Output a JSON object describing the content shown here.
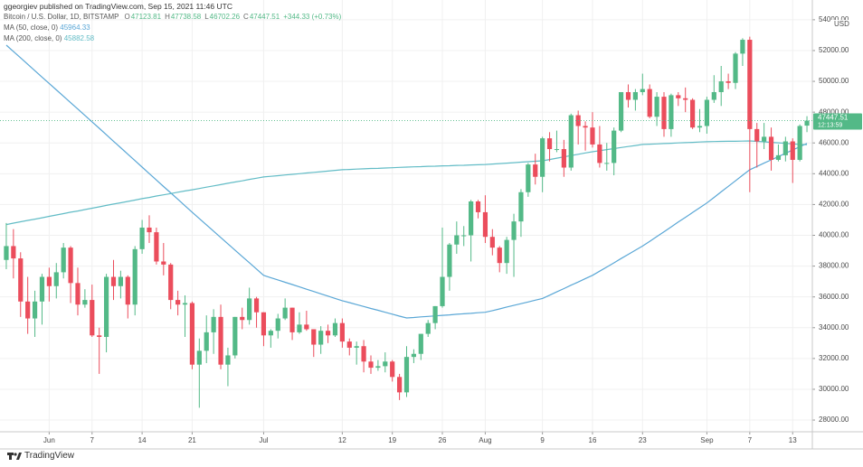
{
  "chart_data": {
    "type": "candlestick",
    "published": "ggeorgiev published on TradingView.com, Sep 15, 2021 11:46 UTC",
    "symbol": "Bitcoin / U.S. Dollar, 1D, BITSTAMP",
    "ohlc_labels": [
      "O",
      "H",
      "L",
      "C"
    ],
    "change": "+344.33 (+0.73%)",
    "currency": "USD",
    "countdown": "12:13:59",
    "brand": "TradingView",
    "up_color": "#53b987",
    "down_color": "#eb4d5c",
    "grid": true,
    "categories": [
      null,
      null,
      null,
      null,
      null,
      null,
      "Jun",
      null,
      null,
      null,
      null,
      null,
      "7",
      null,
      null,
      null,
      null,
      null,
      null,
      "14",
      null,
      null,
      null,
      null,
      null,
      null,
      "21",
      null,
      null,
      null,
      null,
      null,
      null,
      null,
      null,
      null,
      "Jul",
      null,
      null,
      null,
      null,
      null,
      null,
      null,
      null,
      null,
      null,
      "12",
      null,
      null,
      null,
      null,
      null,
      null,
      "19",
      null,
      null,
      null,
      null,
      null,
      null,
      "26",
      null,
      null,
      null,
      null,
      null,
      "Aug",
      null,
      null,
      null,
      null,
      null,
      null,
      null,
      "9",
      null,
      null,
      null,
      null,
      null,
      null,
      "16",
      null,
      null,
      null,
      null,
      null,
      null,
      "23",
      null,
      null,
      null,
      null,
      null,
      null,
      null,
      null,
      "Sep",
      null,
      null,
      null,
      null,
      null,
      "7",
      null,
      null,
      null,
      null,
      null,
      "13",
      null,
      null
    ],
    "open": [
      38400,
      39300,
      38500,
      35700,
      34600,
      35700,
      37300,
      36700,
      37600,
      39200,
      36900,
      35500,
      35800,
      33500,
      33400,
      37300,
      36700,
      37300,
      35500,
      39100,
      40500,
      40200,
      38300,
      38100,
      35800,
      35500,
      35600,
      31600,
      32500,
      33700,
      34700,
      31600,
      32200,
      34700,
      34500,
      35900,
      35000,
      33500,
      33800,
      34600,
      35300,
      33700,
      34200,
      33900,
      32900,
      33800,
      33500,
      34300,
      33100,
      32700,
      32800,
      31800,
      31400,
      31500,
      31800,
      30800,
      29800,
      32100,
      32300,
      33600,
      34300,
      35400,
      37300,
      39400,
      40000,
      40000,
      42200,
      41500,
      39900,
      39200,
      38200,
      39700,
      40900,
      42800,
      44600,
      43800,
      46300,
      45600,
      45600,
      44400,
      47800,
      47100,
      47000,
      45900,
      44700,
      44700,
      46800,
      49300,
      48800,
      49300,
      49500,
      47700,
      49000,
      46900,
      49100,
      48900,
      48800,
      47000,
      47100,
      48800,
      49300,
      50000,
      49900,
      51800,
      52700,
      46900,
      46100,
      46400,
      44900,
      45200,
      46100,
      44900,
      47123.81
    ],
    "high": [
      40800,
      40400,
      38900,
      37300,
      36400,
      37500,
      37900,
      38200,
      39500,
      39300,
      37900,
      36500,
      36800,
      34000,
      37500,
      38400,
      37700,
      37400,
      39300,
      41000,
      41300,
      40500,
      39500,
      38200,
      36400,
      36100,
      35700,
      33300,
      34800,
      35200,
      35500,
      32700,
      34700,
      35300,
      36600,
      36000,
      35000,
      33900,
      34900,
      35900,
      35300,
      35000,
      35100,
      33900,
      34100,
      34200,
      34600,
      34600,
      33300,
      33100,
      33200,
      32200,
      31900,
      32400,
      31900,
      31000,
      32800,
      32600,
      33600,
      34500,
      35400,
      40500,
      39500,
      40900,
      40600,
      42300,
      42300,
      42600,
      40400,
      39300,
      39900,
      41400,
      43000,
      44700,
      45300,
      46400,
      46700,
      46800,
      46200,
      47900,
      48100,
      47400,
      48000,
      47100,
      46000,
      47000,
      49300,
      49800,
      49500,
      50500,
      49800,
      49300,
      49300,
      49200,
      49300,
      49600,
      48900,
      48200,
      49000,
      50400,
      51000,
      50500,
      51900,
      52800,
      52900,
      47300,
      47300,
      47000,
      45900,
      46400,
      46300,
      47200,
      47738.58
    ],
    "low": [
      37800,
      37200,
      34700,
      33600,
      33400,
      34200,
      35700,
      35900,
      37200,
      35600,
      34800,
      35300,
      33400,
      31000,
      32400,
      35800,
      35900,
      34600,
      34800,
      38800,
      39500,
      38100,
      37400,
      35200,
      34800,
      33400,
      31300,
      28800,
      31700,
      32300,
      31300,
      30200,
      32000,
      33900,
      34200,
      34000,
      32800,
      32700,
      33300,
      34500,
      33200,
      33600,
      33800,
      32100,
      32300,
      33000,
      33400,
      32700,
      32200,
      31600,
      31100,
      31000,
      31200,
      31100,
      30500,
      29300,
      29500,
      31700,
      31900,
      33400,
      33900,
      35300,
      36400,
      38800,
      39300,
      38300,
      41100,
      39500,
      38700,
      37600,
      37500,
      37300,
      39900,
      42500,
      43300,
      42800,
      44800,
      45400,
      43800,
      44200,
      45900,
      45500,
      45700,
      44400,
      44200,
      43900,
      46700,
      48300,
      48100,
      49100,
      47600,
      47100,
      46400,
      46400,
      48400,
      48000,
      46900,
      46700,
      46600,
      48600,
      48400,
      49500,
      49500,
      51000,
      42800,
      44400,
      45600,
      44200,
      44800,
      44800,
      43400,
      44800,
      46702.26
    ],
    "close": [
      39300,
      38500,
      35700,
      34600,
      35700,
      37300,
      36700,
      37600,
      39200,
      36900,
      35500,
      35800,
      33500,
      33400,
      37300,
      36700,
      37300,
      35500,
      39100,
      40500,
      40200,
      38300,
      38100,
      35800,
      35500,
      35600,
      31600,
      32500,
      33700,
      34700,
      31600,
      32200,
      34700,
      34500,
      35900,
      35000,
      33500,
      33800,
      34600,
      35300,
      33700,
      34200,
      33900,
      32900,
      33800,
      33500,
      34300,
      33100,
      32700,
      32800,
      31800,
      31400,
      31500,
      31800,
      30800,
      29800,
      32100,
      32300,
      33600,
      34300,
      35400,
      37300,
      39400,
      40000,
      40000,
      42200,
      41500,
      39900,
      39200,
      38200,
      39700,
      40900,
      42800,
      44600,
      43800,
      46300,
      45600,
      45600,
      44400,
      47800,
      47100,
      47000,
      45900,
      44700,
      44700,
      46800,
      49300,
      48800,
      49300,
      49500,
      47700,
      49000,
      46900,
      49100,
      48900,
      48800,
      47000,
      47100,
      48800,
      49300,
      50000,
      49900,
      51800,
      52700,
      46900,
      46100,
      46400,
      44900,
      45200,
      46100,
      44900,
      47100,
      47447.51
    ],
    "series": [
      {
        "name": "MA (50, close, 0)",
        "color": "#5aa7d6",
        "values": [
          52350,
          51935,
          51520,
          51105,
          50690,
          50275,
          49860,
          49445,
          49030,
          48615,
          48200,
          47785,
          47370,
          46950,
          46530,
          46110,
          45690,
          45270,
          44850,
          44430,
          44010,
          43590,
          43170,
          42760,
          42340,
          41920,
          41500,
          41090,
          40680,
          40270,
          39860,
          39450,
          39040,
          38630,
          38220,
          37810,
          37400,
          37250,
          37100,
          36950,
          36800,
          36650,
          36500,
          36350,
          36200,
          36050,
          35900,
          35750,
          35630,
          35500,
          35380,
          35250,
          35130,
          35000,
          34880,
          34750,
          34630,
          34660,
          34700,
          34730,
          34770,
          34800,
          34830,
          34870,
          34900,
          34930,
          34970,
          35000,
          35110,
          35220,
          35340,
          35450,
          35560,
          35670,
          35790,
          35900,
          36110,
          36330,
          36540,
          36760,
          36970,
          37190,
          37400,
          37670,
          37940,
          38210,
          38490,
          38760,
          39030,
          39300,
          39610,
          39920,
          40230,
          40540,
          40860,
          41170,
          41480,
          41790,
          42100,
          42460,
          42820,
          43180,
          43540,
          43900,
          44260,
          44470,
          44690,
          44900,
          45110,
          45330,
          45540,
          45750,
          45964.33
        ]
      },
      {
        "name": "MA (200, close, 0)",
        "color": "#62bcc6",
        "values": [
          40700,
          40790,
          40880,
          40970,
          41050,
          41140,
          41230,
          41320,
          41410,
          41500,
          41580,
          41670,
          41760,
          41850,
          41940,
          42030,
          42110,
          42200,
          42290,
          42380,
          42460,
          42550,
          42630,
          42710,
          42800,
          42880,
          42960,
          43040,
          43130,
          43210,
          43290,
          43380,
          43460,
          43540,
          43630,
          43710,
          43790,
          43830,
          43870,
          43920,
          43960,
          44000,
          44050,
          44090,
          44130,
          44170,
          44220,
          44260,
          44280,
          44300,
          44320,
          44340,
          44350,
          44370,
          44390,
          44410,
          44430,
          44450,
          44460,
          44480,
          44490,
          44510,
          44520,
          44540,
          44550,
          44570,
          44580,
          44600,
          44630,
          44660,
          44690,
          44720,
          44750,
          44780,
          44810,
          44840,
          44920,
          45010,
          45090,
          45180,
          45260,
          45350,
          45430,
          45500,
          45570,
          45630,
          45700,
          45770,
          45830,
          45900,
          45920,
          45940,
          45960,
          45980,
          46000,
          46020,
          46040,
          46060,
          46080,
          46090,
          46100,
          46110,
          46110,
          46120,
          46130,
          46100,
          46070,
          46040,
          46010,
          45970,
          45940,
          45910,
          45882.58
        ]
      }
    ],
    "ylim": [
      27240,
      54110
    ],
    "yticks": [
      {
        "value": 28000,
        "label": "28000.00"
      },
      {
        "value": 30000,
        "label": "30000.00"
      },
      {
        "value": 32000,
        "label": "32000.00"
      },
      {
        "value": 34000,
        "label": "34000.00"
      },
      {
        "value": 36000,
        "label": "36000.00"
      },
      {
        "value": 38000,
        "label": "38000.00"
      },
      {
        "value": 40000,
        "label": "40000.00"
      },
      {
        "value": 42000,
        "label": "42000.00"
      },
      {
        "value": 44000,
        "label": "44000.00"
      },
      {
        "value": 46000,
        "label": "46000.00"
      },
      {
        "value": 48000,
        "label": "48000.00"
      },
      {
        "value": 50000,
        "label": "50000.00"
      },
      {
        "value": 52000,
        "label": "52000.00"
      },
      {
        "value": 54000,
        "label": "54000.00"
      }
    ]
  }
}
